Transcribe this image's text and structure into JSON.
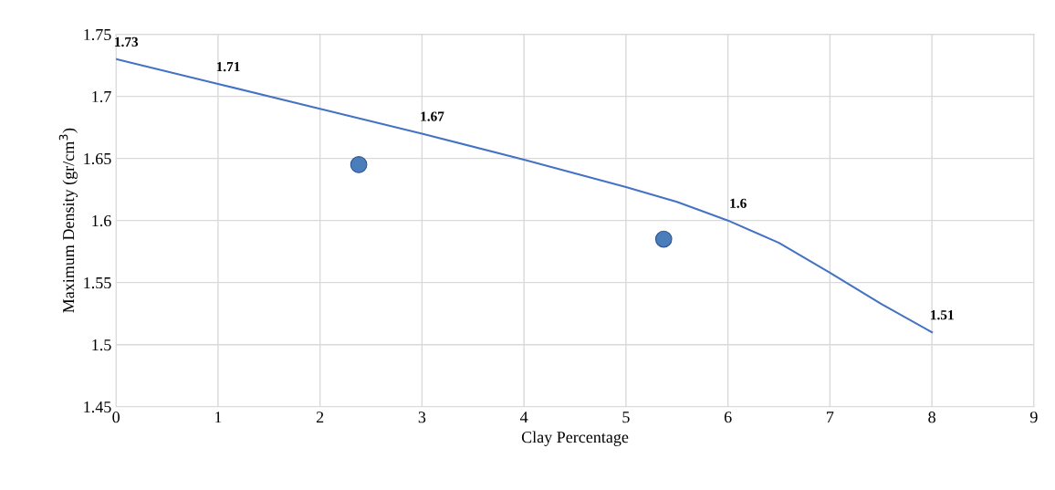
{
  "chart_data": {
    "type": "line",
    "xlabel": "Clay Percentage",
    "ylabel": "Maximum Density (gr/cm$^{3}$)",
    "xlim": [
      0,
      9
    ],
    "xticks": [
      0,
      1,
      2,
      3,
      4,
      5,
      6,
      7,
      8,
      9
    ],
    "ylim": [
      1.45,
      1.75
    ],
    "yticks": [
      1.45,
      1.5,
      1.55,
      1.6,
      1.65,
      1.7,
      1.75
    ],
    "grid": true,
    "series": [
      {
        "color": "#4472c4",
        "x": [
          0,
          1,
          2,
          3,
          4,
          5,
          5.5,
          6,
          6.5,
          7,
          7.5,
          8
        ],
        "values": [
          1.73,
          1.71,
          1.69,
          1.67,
          1.649,
          1.627,
          1.615,
          1.6,
          1.582,
          1.558,
          1.533,
          1.51
        ],
        "value_labels": [
          "1.73",
          "1.71",
          null,
          "1.67",
          null,
          null,
          null,
          "1.6",
          null,
          null,
          null,
          "1.51"
        ],
        "marker": "none"
      },
      {
        "type": "scatter",
        "color": "#4a7ebb",
        "x": [
          2.38,
          5.37
        ],
        "values": [
          1.645,
          1.585
        ],
        "marker": "circle"
      }
    ]
  }
}
